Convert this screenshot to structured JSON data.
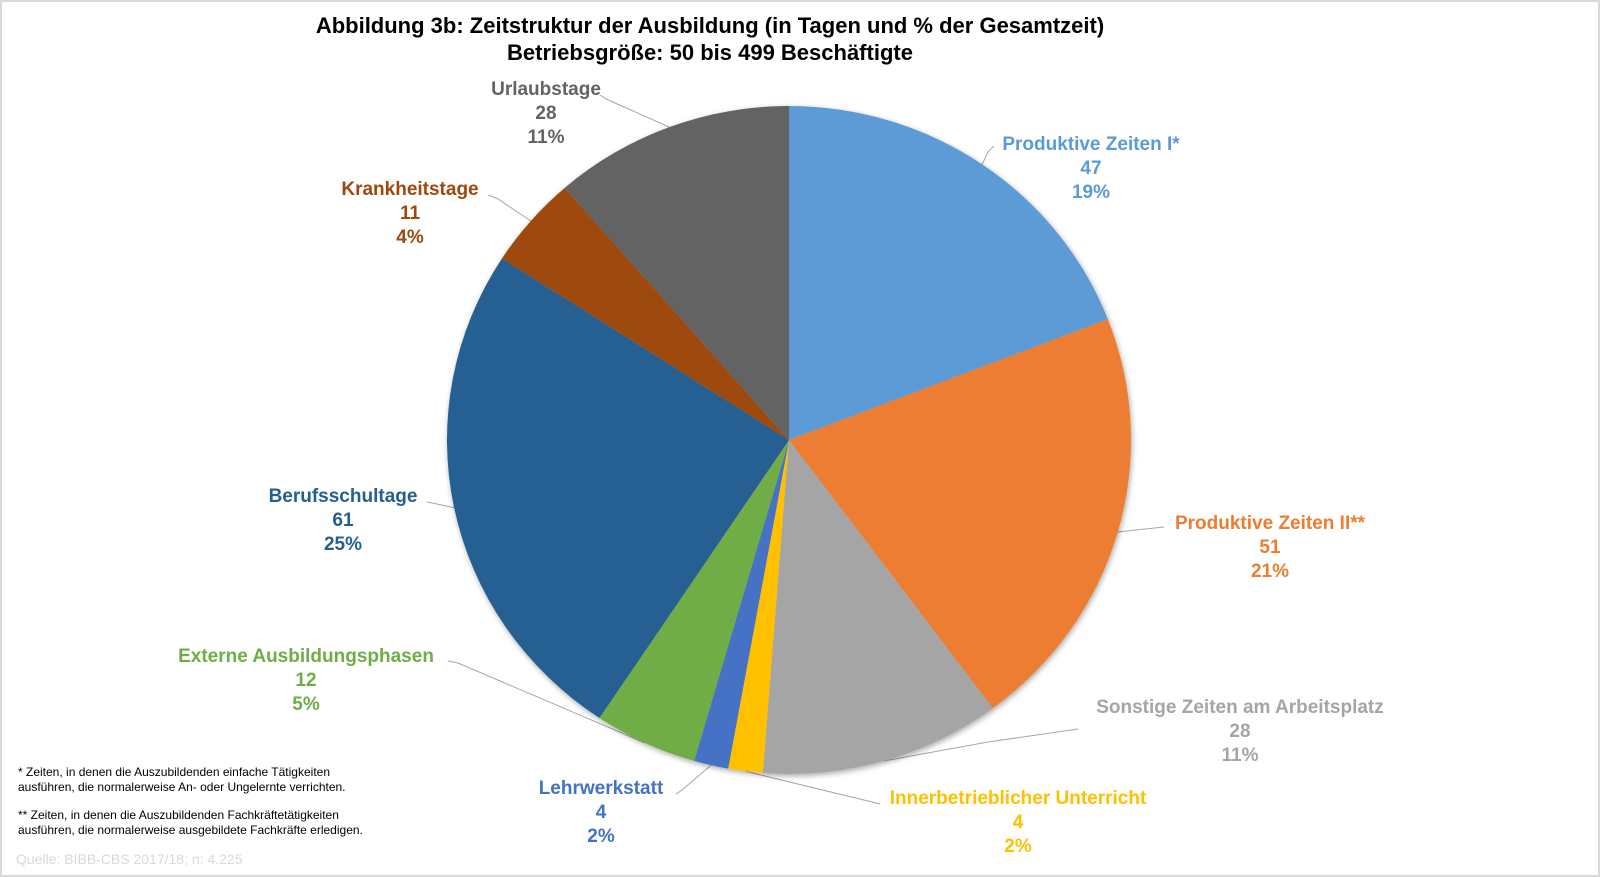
{
  "chart_data": {
    "type": "pie",
    "title": "Abbildung 3b: Zeitstruktur der Ausbildung (in Tagen und % der Gesamtzeit)",
    "subtitle": "Betriebsgröße: 50 bis 499 Beschäftigte",
    "start_angle": "12 o'clock",
    "direction": "clockwise",
    "slices": [
      {
        "label": "Produktive Zeiten I*",
        "value": 47,
        "percent": "19%",
        "color": "#5B9BD5",
        "label_color": "#5B9BD5"
      },
      {
        "label": "Produktive Zeiten II**",
        "value": 51,
        "percent": "21%",
        "color": "#ED7D31",
        "label_color": "#ED7D31"
      },
      {
        "label": "Sonstige Zeiten am Arbeitsplatz",
        "value": 28,
        "percent": "11%",
        "color": "#A5A5A5",
        "label_color": "#A5A5A5"
      },
      {
        "label": "Innerbetrieblicher Unterricht",
        "value": 4,
        "percent": "2%",
        "color": "#FFC000",
        "label_color": "#FFC000"
      },
      {
        "label": "Lehrwerkstatt",
        "value": 4,
        "percent": "2%",
        "color": "#4472C4",
        "label_color": "#4472C4"
      },
      {
        "label": "Externe Ausbildungsphasen",
        "value": 12,
        "percent": "5%",
        "color": "#70AD47",
        "label_color": "#70AD47"
      },
      {
        "label": "Berufsschultage",
        "value": 61,
        "percent": "25%",
        "color": "#255E91",
        "label_color": "#255E91"
      },
      {
        "label": "Krankheitstage",
        "value": 11,
        "percent": "4%",
        "color": "#9E480E",
        "label_color": "#9E480E"
      },
      {
        "label": "Urlaubstage",
        "value": 28,
        "percent": "11%",
        "color": "#636363",
        "label_color": "#636363"
      }
    ]
  },
  "footnotes": {
    "note1_line1": "* Zeiten, in denen die Auszubildenden  einfache Tätigkeiten",
    "note1_line2": "ausführen, die normalerweise An- oder Ungelernte verrichten.",
    "note2_line1": "** Zeiten, in denen die Auszubildenden  Fachkräftetätigkeiten",
    "note2_line2": "ausführen, die normalerweise ausgebildete Fachkräfte erledigen.",
    "source": "Quelle: BIBB-CBS 2017/18; n: 4.225"
  }
}
